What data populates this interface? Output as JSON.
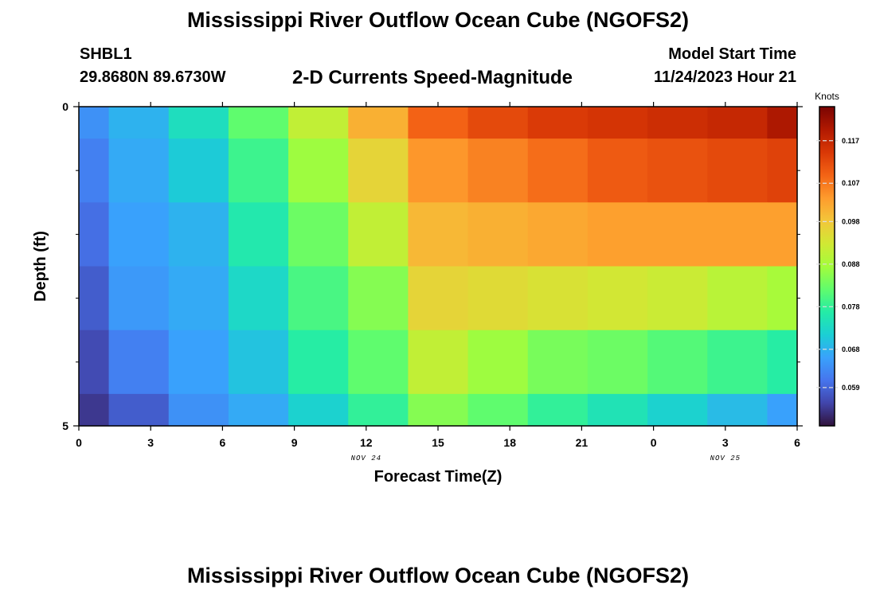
{
  "page": {
    "title_top": "Mississippi River Outflow Ocean Cube (NGOFS2)",
    "title_bottom": "Mississippi River Outflow Ocean Cube (NGOFS2)",
    "station_id": "SHBL1",
    "station_coords": "29.8680N  89.6730W",
    "subtitle": "2-D Currents Speed-Magnitude",
    "model_start_label": "Model Start Time",
    "model_start_value": "11/24/2023 Hour 21"
  },
  "chart_data": {
    "type": "heatmap",
    "title": "2-D Currents Speed-Magnitude",
    "xlabel": "Forecast Time(Z)",
    "ylabel": "Depth (ft)",
    "x_tick_labels": [
      "0",
      "3",
      "6",
      "9",
      "12",
      "15",
      "18",
      "21",
      "0",
      "3",
      "6"
    ],
    "x_range_hours": [
      0,
      30
    ],
    "x_column_edges_hours": [
      0,
      1.25,
      3.75,
      6.25,
      8.75,
      11.25,
      13.75,
      16.25,
      18.75,
      21.25,
      23.75,
      26.25,
      28.75,
      30
    ],
    "date_labels": [
      {
        "text": "NOV 24",
        "hour": 12
      },
      {
        "text": "NOV 25",
        "hour": 27
      }
    ],
    "y_tick_labels": [
      "0",
      "5"
    ],
    "y_range_ft": [
      0,
      5
    ],
    "y_minor_tick_ft": [
      1,
      2,
      3,
      4
    ],
    "y_row_edges_ft": [
      0,
      0.5,
      1.5,
      2.5,
      3.5,
      4.5,
      5
    ],
    "values_knots": [
      [
        0.064,
        0.068,
        0.074,
        0.082,
        0.091,
        0.101,
        0.109,
        0.112,
        0.114,
        0.115,
        0.116,
        0.117,
        0.12
      ],
      [
        0.062,
        0.067,
        0.071,
        0.079,
        0.087,
        0.096,
        0.104,
        0.106,
        0.108,
        0.11,
        0.111,
        0.112,
        0.113
      ],
      [
        0.06,
        0.066,
        0.068,
        0.076,
        0.083,
        0.091,
        0.1,
        0.101,
        0.102,
        0.103,
        0.103,
        0.103,
        0.103
      ],
      [
        0.058,
        0.065,
        0.067,
        0.073,
        0.08,
        0.085,
        0.096,
        0.095,
        0.094,
        0.093,
        0.092,
        0.09,
        0.088
      ],
      [
        0.056,
        0.062,
        0.066,
        0.07,
        0.077,
        0.082,
        0.091,
        0.087,
        0.084,
        0.083,
        0.081,
        0.079,
        0.077
      ],
      [
        0.054,
        0.058,
        0.064,
        0.067,
        0.072,
        0.078,
        0.085,
        0.082,
        0.078,
        0.075,
        0.072,
        0.069,
        0.066
      ]
    ],
    "colorbar": {
      "title": "Knots",
      "range": [
        0.05,
        0.125
      ],
      "ticks": [
        0.059,
        0.068,
        0.078,
        0.088,
        0.098,
        0.107,
        0.117
      ],
      "tick_labels": [
        "0.059",
        "0.068",
        "0.078",
        "0.088",
        "0.098",
        "0.107",
        "0.117"
      ],
      "colormap": [
        "#30123b",
        "#4145ab",
        "#4675ed",
        "#39a2fc",
        "#1bcfd4",
        "#24eca6",
        "#61fc6c",
        "#a4fc3b",
        "#d1e834",
        "#f3c63a",
        "#fe9b2d",
        "#f36315",
        "#d93806",
        "#b11901",
        "#7a0402"
      ]
    }
  }
}
